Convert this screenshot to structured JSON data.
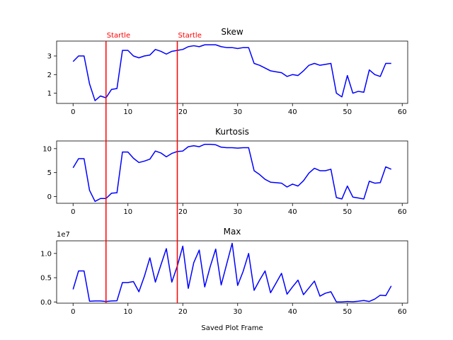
{
  "chart_data": {
    "type": "line",
    "xlabel": "Saved Plot Frame",
    "line_color": "#0000ff",
    "annotation_color": "#ff0000",
    "x": [
      0,
      1,
      2,
      3,
      4,
      5,
      6,
      7,
      8,
      9,
      10,
      11,
      12,
      13,
      14,
      15,
      16,
      17,
      18,
      19,
      20,
      21,
      22,
      23,
      24,
      25,
      26,
      27,
      28,
      29,
      30,
      31,
      32,
      33,
      34,
      35,
      36,
      37,
      38,
      39,
      40,
      41,
      42,
      43,
      44,
      45,
      46,
      47,
      48,
      49,
      50,
      51,
      52,
      53,
      54,
      55,
      56,
      57,
      58
    ],
    "xlim": [
      -3,
      61
    ],
    "xticks": [
      0,
      10,
      20,
      30,
      40,
      50,
      60
    ],
    "annotations": [
      {
        "x": 6,
        "label": "Startle"
      },
      {
        "x": 19,
        "label": "Startle"
      }
    ],
    "panels": [
      {
        "title": "Skew",
        "ylim": [
          0.45,
          3.8
        ],
        "yticks": [
          1,
          2,
          3
        ],
        "ytick_labels": [
          "1",
          "2",
          "3"
        ],
        "offset_label": "",
        "values": [
          2.7,
          3.0,
          3.0,
          1.5,
          0.6,
          0.85,
          0.75,
          1.2,
          1.25,
          3.3,
          3.3,
          3.0,
          2.9,
          3.0,
          3.05,
          3.35,
          3.25,
          3.1,
          3.25,
          3.3,
          3.35,
          3.5,
          3.55,
          3.5,
          3.6,
          3.6,
          3.6,
          3.5,
          3.45,
          3.45,
          3.4,
          3.45,
          3.45,
          2.6,
          2.5,
          2.35,
          2.2,
          2.15,
          2.1,
          1.9,
          2.0,
          1.95,
          2.2,
          2.5,
          2.6,
          2.5,
          2.55,
          2.6,
          1.0,
          0.8,
          1.95,
          1.0,
          1.1,
          1.05,
          2.25,
          2.0,
          1.9,
          2.6,
          2.6
        ]
      },
      {
        "title": "Kurtosis",
        "ylim": [
          -1.4,
          11.6
        ],
        "yticks": [
          0,
          5,
          10
        ],
        "ytick_labels": [
          "0",
          "5",
          "10"
        ],
        "offset_label": "",
        "values": [
          6.0,
          7.9,
          7.9,
          1.3,
          -1.0,
          -0.4,
          -0.4,
          0.7,
          0.8,
          9.3,
          9.3,
          8.0,
          7.1,
          7.4,
          7.8,
          9.5,
          9.1,
          8.3,
          9.0,
          9.4,
          9.5,
          10.4,
          10.6,
          10.4,
          10.9,
          10.9,
          10.8,
          10.3,
          10.2,
          10.2,
          10.1,
          10.2,
          10.2,
          5.4,
          4.6,
          3.6,
          3.0,
          2.9,
          2.8,
          2.0,
          2.6,
          2.2,
          3.3,
          4.9,
          5.9,
          5.4,
          5.4,
          5.7,
          -0.2,
          -0.5,
          2.2,
          -0.1,
          -0.3,
          -0.5,
          3.2,
          2.8,
          2.9,
          6.2,
          5.7
        ]
      },
      {
        "title": "Max",
        "ylim": [
          -0.25,
          12.6
        ],
        "yticks": [
          0,
          5,
          10
        ],
        "ytick_labels": [
          "0.0",
          "0.5",
          "1.0"
        ],
        "offset_label": "1e7",
        "values": [
          2.6,
          6.4,
          6.4,
          0.15,
          0.2,
          0.2,
          0.1,
          0.2,
          0.25,
          4.0,
          4.0,
          4.2,
          2.1,
          5.3,
          9.1,
          4.1,
          7.6,
          11.0,
          4.1,
          7.4,
          11.5,
          2.8,
          8.1,
          10.7,
          3.1,
          7.3,
          10.9,
          3.5,
          7.8,
          12.1,
          3.4,
          6.3,
          10.0,
          2.4,
          4.5,
          6.4,
          1.9,
          3.9,
          5.9,
          1.6,
          3.1,
          4.5,
          1.5,
          2.9,
          4.3,
          1.2,
          1.8,
          2.1,
          0.0,
          0.0,
          0.1,
          0.05,
          0.15,
          0.3,
          0.1,
          0.6,
          1.4,
          1.3,
          3.3
        ]
      }
    ]
  }
}
